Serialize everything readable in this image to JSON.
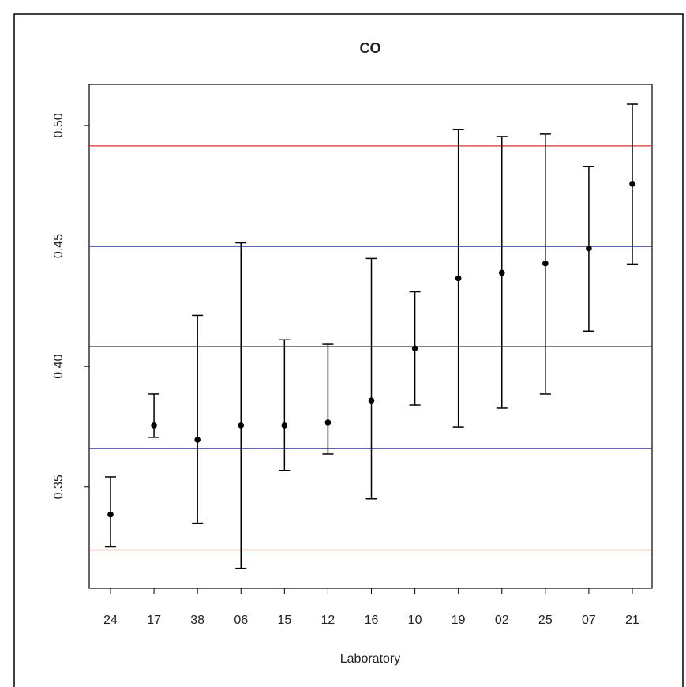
{
  "chart_data": {
    "type": "errorbar",
    "title": "CO",
    "xlabel": "Laboratory",
    "categories": [
      "24",
      "17",
      "38",
      "06",
      "15",
      "12",
      "16",
      "10",
      "19",
      "02",
      "25",
      "07",
      "21"
    ],
    "series": [
      {
        "color": "#000000",
        "values": [
          0.3386,
          0.3755,
          0.3696,
          0.3755,
          0.3755,
          0.3768,
          0.3859,
          0.4075,
          0.4366,
          0.4389,
          0.4428,
          0.449,
          0.4758
        ],
        "lower": [
          0.3252,
          0.3706,
          0.335,
          0.3163,
          0.3569,
          0.3637,
          0.3451,
          0.384,
          0.3748,
          0.3827,
          0.3886,
          0.4147,
          0.4425
        ],
        "upper": [
          0.3542,
          0.3886,
          0.4212,
          0.4513,
          0.4111,
          0.4092,
          0.4448,
          0.431,
          0.4984,
          0.4954,
          0.4964,
          0.483,
          0.5088
        ]
      }
    ],
    "hlines": [
      {
        "value": 0.4915,
        "color": "#e03030"
      },
      {
        "value": 0.4498,
        "color": "#303090"
      },
      {
        "value": 0.4082,
        "color": "#000000"
      },
      {
        "value": 0.366,
        "color": "#303090"
      },
      {
        "value": 0.3239,
        "color": "#e03030"
      }
    ],
    "ylim": [
      0.308,
      0.517
    ],
    "yticks": [
      {
        "value": 0.35,
        "label": "0.35"
      },
      {
        "value": 0.4,
        "label": "0.40"
      },
      {
        "value": 0.45,
        "label": "0.45"
      },
      {
        "value": 0.5,
        "label": "0.50"
      }
    ]
  }
}
